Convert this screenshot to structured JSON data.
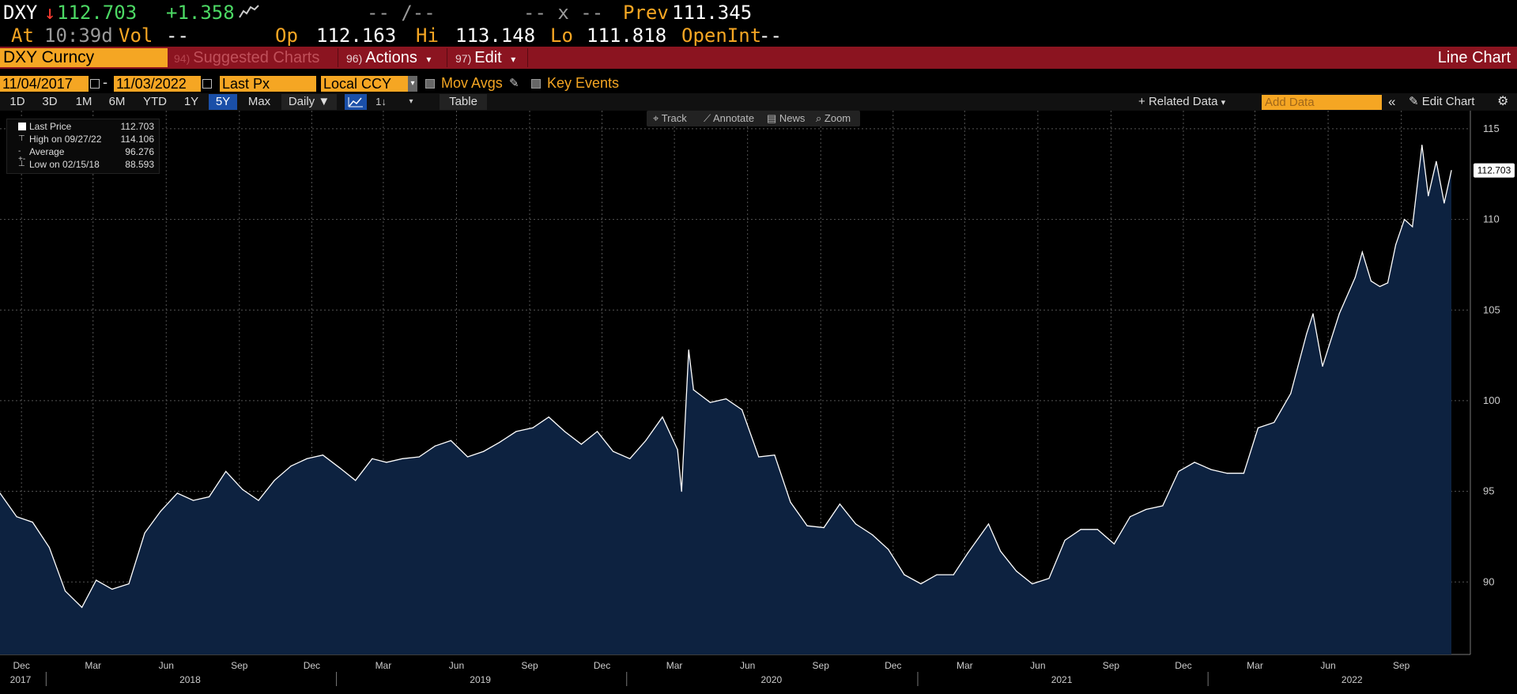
{
  "quote": {
    "ticker": "DXY",
    "arrow": "↓",
    "last": "112.703",
    "change": "+1.358",
    "bid_ask": "-- /--",
    "size": "-- x --",
    "prev_label": "Prev",
    "prev": "111.345",
    "at_label": "At",
    "time": "10:39d",
    "vol_label": "Vol",
    "vol": "--",
    "open_label": "Op",
    "open": "112.163",
    "high_label": "Hi",
    "high": "113.148",
    "low_label": "Lo",
    "low": "111.818",
    "oi_label": "OpenInt",
    "oi": "--"
  },
  "menubar": {
    "security": "DXY Curncy",
    "suggested_num": "94)",
    "suggested": "Suggested Charts",
    "actions_num": "96)",
    "actions": "Actions",
    "edit_num": "97)",
    "edit": "Edit",
    "chart_type": "Line Chart"
  },
  "params": {
    "start_date": "11/04/2017",
    "end_date": "11/03/2022",
    "field": "Last Px",
    "currency": "Local CCY",
    "mov_avgs": "Mov Avgs",
    "key_events": "Key Events"
  },
  "toolbar": {
    "timeframes": [
      "1D",
      "3D",
      "1M",
      "6M",
      "YTD",
      "1Y",
      "5Y",
      "Max"
    ],
    "active_timeframe": "5Y",
    "frequency": "Daily",
    "table": "Table",
    "related_data": "Related Data",
    "add_data_placeholder": "Add Data",
    "edit_chart": "Edit Chart"
  },
  "legend": {
    "rows": [
      {
        "name": "Last Price",
        "value": "112.703"
      },
      {
        "name": "High on 09/27/22",
        "value": "114.106"
      },
      {
        "name": "Average",
        "value": "96.276"
      },
      {
        "name": "Low on 02/15/18",
        "value": "88.593"
      }
    ]
  },
  "chart_tools": [
    "Track",
    "Annotate",
    "News",
    "Zoom"
  ],
  "colors": {
    "accent_orange": "#f5a623",
    "menubar_red": "#8b1420",
    "area_fill": "#0d2240",
    "line": "#ffffff",
    "active_blue": "#1a4fa8"
  },
  "chart_data": {
    "type": "area",
    "title": "",
    "ylim": [
      86,
      116
    ],
    "y_ticks": [
      90,
      95,
      100,
      105,
      110,
      115
    ],
    "last_value_label": "112.703",
    "x_month_labels": [
      "Dec",
      "Mar",
      "Jun",
      "Sep",
      "Dec",
      "Mar",
      "Jun",
      "Sep",
      "Dec",
      "Mar",
      "Jun",
      "Sep",
      "Dec",
      "Mar",
      "Jun",
      "Sep",
      "Dec",
      "Mar",
      "Jun",
      "Sep"
    ],
    "x_year_labels": [
      "2017",
      "2018",
      "2019",
      "2020",
      "2021",
      "2022"
    ],
    "grid": true,
    "series": [
      {
        "name": "Last Price",
        "x": [
          "2017-11-04",
          "2017-11-25",
          "2017-12-15",
          "2018-01-05",
          "2018-01-25",
          "2018-02-15",
          "2018-03-05",
          "2018-03-25",
          "2018-04-15",
          "2018-05-05",
          "2018-05-25",
          "2018-06-15",
          "2018-07-05",
          "2018-07-25",
          "2018-08-15",
          "2018-09-05",
          "2018-09-25",
          "2018-10-15",
          "2018-11-05",
          "2018-11-25",
          "2018-12-15",
          "2019-01-05",
          "2019-01-25",
          "2019-02-15",
          "2019-03-05",
          "2019-03-25",
          "2019-04-15",
          "2019-05-05",
          "2019-05-25",
          "2019-06-15",
          "2019-07-05",
          "2019-07-25",
          "2019-08-15",
          "2019-09-05",
          "2019-09-25",
          "2019-10-15",
          "2019-11-05",
          "2019-11-25",
          "2019-12-15",
          "2020-01-05",
          "2020-01-25",
          "2020-02-15",
          "2020-03-05",
          "2020-03-10",
          "2020-03-19",
          "2020-03-25",
          "2020-04-15",
          "2020-05-05",
          "2020-05-25",
          "2020-06-15",
          "2020-07-05",
          "2020-07-25",
          "2020-08-15",
          "2020-09-05",
          "2020-09-25",
          "2020-10-15",
          "2020-11-05",
          "2020-11-25",
          "2020-12-15",
          "2021-01-05",
          "2021-01-25",
          "2021-02-15",
          "2021-03-05",
          "2021-03-31",
          "2021-04-15",
          "2021-05-05",
          "2021-05-25",
          "2021-06-15",
          "2021-07-05",
          "2021-07-25",
          "2021-08-15",
          "2021-09-05",
          "2021-09-25",
          "2021-10-15",
          "2021-11-05",
          "2021-11-25",
          "2021-12-15",
          "2022-01-05",
          "2022-01-25",
          "2022-02-15",
          "2022-03-05",
          "2022-03-25",
          "2022-04-15",
          "2022-05-05",
          "2022-05-13",
          "2022-05-25",
          "2022-06-15",
          "2022-07-05",
          "2022-07-14",
          "2022-07-25",
          "2022-08-05",
          "2022-08-15",
          "2022-08-25",
          "2022-09-05",
          "2022-09-15",
          "2022-09-27",
          "2022-10-05",
          "2022-10-15",
          "2022-10-25",
          "2022-11-03"
        ],
        "y": [
          94.9,
          93.6,
          93.3,
          91.9,
          89.5,
          88.6,
          90.1,
          89.6,
          89.9,
          92.7,
          93.9,
          94.9,
          94.5,
          94.7,
          96.1,
          95.1,
          94.5,
          95.6,
          96.4,
          96.8,
          97.0,
          96.3,
          95.6,
          96.8,
          96.6,
          96.8,
          96.9,
          97.5,
          97.8,
          96.9,
          97.2,
          97.7,
          98.3,
          98.5,
          99.1,
          98.3,
          97.6,
          98.3,
          97.2,
          96.8,
          97.8,
          99.1,
          97.3,
          95.0,
          102.8,
          100.6,
          99.9,
          100.1,
          99.5,
          96.9,
          97.0,
          94.4,
          93.1,
          93.0,
          94.3,
          93.2,
          92.6,
          91.8,
          90.4,
          89.9,
          90.4,
          90.4,
          91.6,
          93.2,
          91.7,
          90.6,
          89.9,
          90.2,
          92.3,
          92.9,
          92.9,
          92.1,
          93.6,
          94.0,
          94.2,
          96.1,
          96.6,
          96.2,
          96.0,
          96.0,
          98.5,
          98.8,
          100.4,
          103.7,
          104.8,
          101.9,
          104.8,
          106.8,
          108.2,
          106.6,
          106.3,
          106.5,
          108.6,
          110.0,
          109.6,
          114.1,
          111.3,
          113.2,
          110.9,
          112.7
        ]
      }
    ]
  }
}
